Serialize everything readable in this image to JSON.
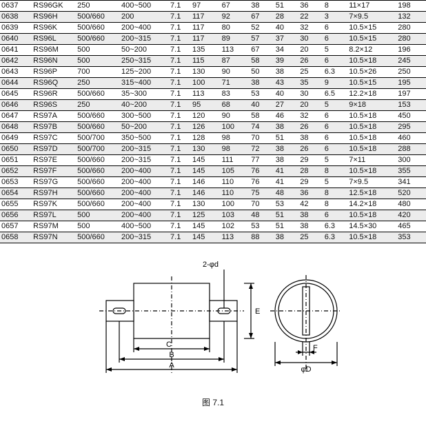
{
  "table": {
    "col_widths_pct": [
      6.5,
      9,
      9,
      10,
      4.5,
      6,
      6,
      5,
      5,
      5,
      5,
      10,
      6
    ],
    "rows": [
      {
        "alt": false,
        "cells": [
          "0637",
          "RS96GK",
          "250",
          "400~500",
          "7.1",
          "97",
          "67",
          "38",
          "51",
          "36",
          "8",
          "11×17",
          "198"
        ]
      },
      {
        "alt": true,
        "cells": [
          "0638",
          "RS96H",
          "500/660",
          "200",
          "7.1",
          "117",
          "92",
          "67",
          "28",
          "22",
          "3",
          "7×9.5",
          "132"
        ]
      },
      {
        "alt": false,
        "cells": [
          "0639",
          "RS96K",
          "500/660",
          "200~400",
          "7.1",
          "117",
          "80",
          "52",
          "40",
          "32",
          "6",
          "10.5×15",
          "280"
        ]
      },
      {
        "alt": true,
        "cells": [
          "0640",
          "RS96L",
          "500/660",
          "200~315",
          "7.1",
          "117",
          "89",
          "57",
          "37",
          "30",
          "6",
          "10.5×15",
          "280"
        ]
      },
      {
        "alt": false,
        "cells": [
          "0641",
          "RS96M",
          "500",
          "50~200",
          "7.1",
          "135",
          "113",
          "67",
          "34",
          "20",
          "5",
          "8.2×12",
          "196"
        ]
      },
      {
        "alt": true,
        "cells": [
          "0642",
          "RS96N",
          "500",
          "250~315",
          "7.1",
          "115",
          "87",
          "58",
          "39",
          "26",
          "6",
          "10.5×18",
          "245"
        ]
      },
      {
        "alt": false,
        "cells": [
          "0643",
          "RS96P",
          "700",
          "125~200",
          "7.1",
          "130",
          "90",
          "50",
          "38",
          "25",
          "6.3",
          "10.5×26",
          "250"
        ]
      },
      {
        "alt": true,
        "cells": [
          "0644",
          "RS96Q",
          "250",
          "315~400",
          "7.1",
          "100",
          "71",
          "38",
          "43",
          "35",
          "9",
          "10.5×15",
          "195"
        ]
      },
      {
        "alt": false,
        "cells": [
          "0645",
          "RS96R",
          "500/660",
          "35~300",
          "7.1",
          "113",
          "83",
          "53",
          "40",
          "30",
          "6.5",
          "12.2×18",
          "197"
        ]
      },
      {
        "alt": true,
        "cells": [
          "0646",
          "RS96S",
          "250",
          "40~200",
          "7.1",
          "95",
          "68",
          "40",
          "27",
          "20",
          "5",
          "9×18",
          "153"
        ]
      },
      {
        "alt": false,
        "cells": [
          "0647",
          "RS97A",
          "500/660",
          "300~500",
          "7.1",
          "120",
          "90",
          "58",
          "46",
          "32",
          "6",
          "10.5×18",
          "450"
        ]
      },
      {
        "alt": true,
        "cells": [
          "0648",
          "RS97B",
          "500/660",
          "50~200",
          "7.1",
          "126",
          "100",
          "74",
          "38",
          "26",
          "6",
          "10.5×18",
          "295"
        ]
      },
      {
        "alt": false,
        "cells": [
          "0649",
          "RS97C",
          "500/700",
          "350~500",
          "7.1",
          "128",
          "98",
          "70",
          "51",
          "38",
          "6",
          "10.5×18",
          "460"
        ]
      },
      {
        "alt": true,
        "cells": [
          "0650",
          "RS97D",
          "500/700",
          "200~315",
          "7.1",
          "130",
          "98",
          "72",
          "38",
          "26",
          "6",
          "10.5×18",
          "288"
        ]
      },
      {
        "alt": false,
        "cells": [
          "0651",
          "RS97E",
          "500/660",
          "200~315",
          "7.1",
          "145",
          "111",
          "77",
          "38",
          "29",
          "5",
          "7×11",
          "300"
        ]
      },
      {
        "alt": true,
        "cells": [
          "0652",
          "RS97F",
          "500/660",
          "200~400",
          "7.1",
          "145",
          "105",
          "76",
          "41",
          "28",
          "8",
          "10.5×18",
          "355"
        ]
      },
      {
        "alt": false,
        "cells": [
          "0653",
          "RS97G",
          "500/660",
          "200~400",
          "7.1",
          "146",
          "110",
          "76",
          "41",
          "29",
          "5",
          "7×9.5",
          "341"
        ]
      },
      {
        "alt": true,
        "cells": [
          "0654",
          "RS97H",
          "500/660",
          "200~400",
          "7.1",
          "146",
          "110",
          "75",
          "48",
          "36",
          "8",
          "12.5×18",
          "520"
        ]
      },
      {
        "alt": false,
        "cells": [
          "0655",
          "RS97K",
          "500/660",
          "200~400",
          "7.1",
          "130",
          "100",
          "70",
          "53",
          "42",
          "8",
          "14.2×18",
          "480"
        ]
      },
      {
        "alt": true,
        "cells": [
          "0656",
          "RS97L",
          "500",
          "200~400",
          "7.1",
          "125",
          "103",
          "48",
          "51",
          "38",
          "6",
          "10.5×18",
          "420"
        ]
      },
      {
        "alt": false,
        "cells": [
          "0657",
          "RS97M",
          "500",
          "400~500",
          "7.1",
          "145",
          "102",
          "53",
          "51",
          "38",
          "6.3",
          "14.5×30",
          "465"
        ]
      },
      {
        "alt": true,
        "cells": [
          "0658",
          "RS97N",
          "500/660",
          "200~315",
          "7.1",
          "145",
          "113",
          "88",
          "38",
          "25",
          "6.3",
          "10.5×18",
          "353"
        ]
      }
    ]
  },
  "figure": {
    "caption": "图 7.1",
    "labels": {
      "A": "A",
      "B": "B",
      "C": "C",
      "E": "E",
      "F": "F",
      "phiD": "φD",
      "twoPhid": "2-φd"
    },
    "stroke": "#000",
    "fill": "#fff",
    "stroke_width": 1.2
  }
}
